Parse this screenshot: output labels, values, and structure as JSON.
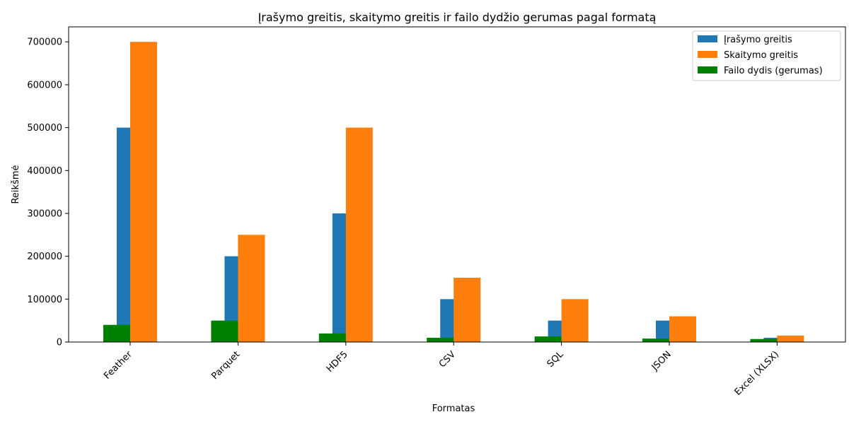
{
  "chart_data": {
    "type": "bar",
    "title": "Įrašymo greitis, skaitymo greitis ir failo dydžio gerumas pagal formatą",
    "xlabel": "Formatas",
    "ylabel": "Reikšmė",
    "categories": [
      "Feather",
      "Parquet",
      "HDF5",
      "CSV",
      "SQL",
      "JSON",
      "Excel (XLSX)"
    ],
    "series": [
      {
        "name": "Įrašymo greitis",
        "color": "#1f77b4",
        "values": [
          500000,
          200000,
          300000,
          100000,
          50000,
          50000,
          10000
        ]
      },
      {
        "name": "Skaitymo greitis",
        "color": "#ff7f0e",
        "values": [
          700000,
          250000,
          500000,
          150000,
          100000,
          60000,
          15000
        ]
      },
      {
        "name": "Failo dydis (gerumas)",
        "color": "#008000",
        "values": [
          40000,
          50000,
          20000,
          10000,
          13000,
          8000,
          7000
        ]
      }
    ],
    "yticks": [
      0,
      100000,
      200000,
      300000,
      400000,
      500000,
      600000,
      700000
    ],
    "ylim": [
      0,
      735000
    ],
    "legend_position": "top-right",
    "grid": false
  }
}
